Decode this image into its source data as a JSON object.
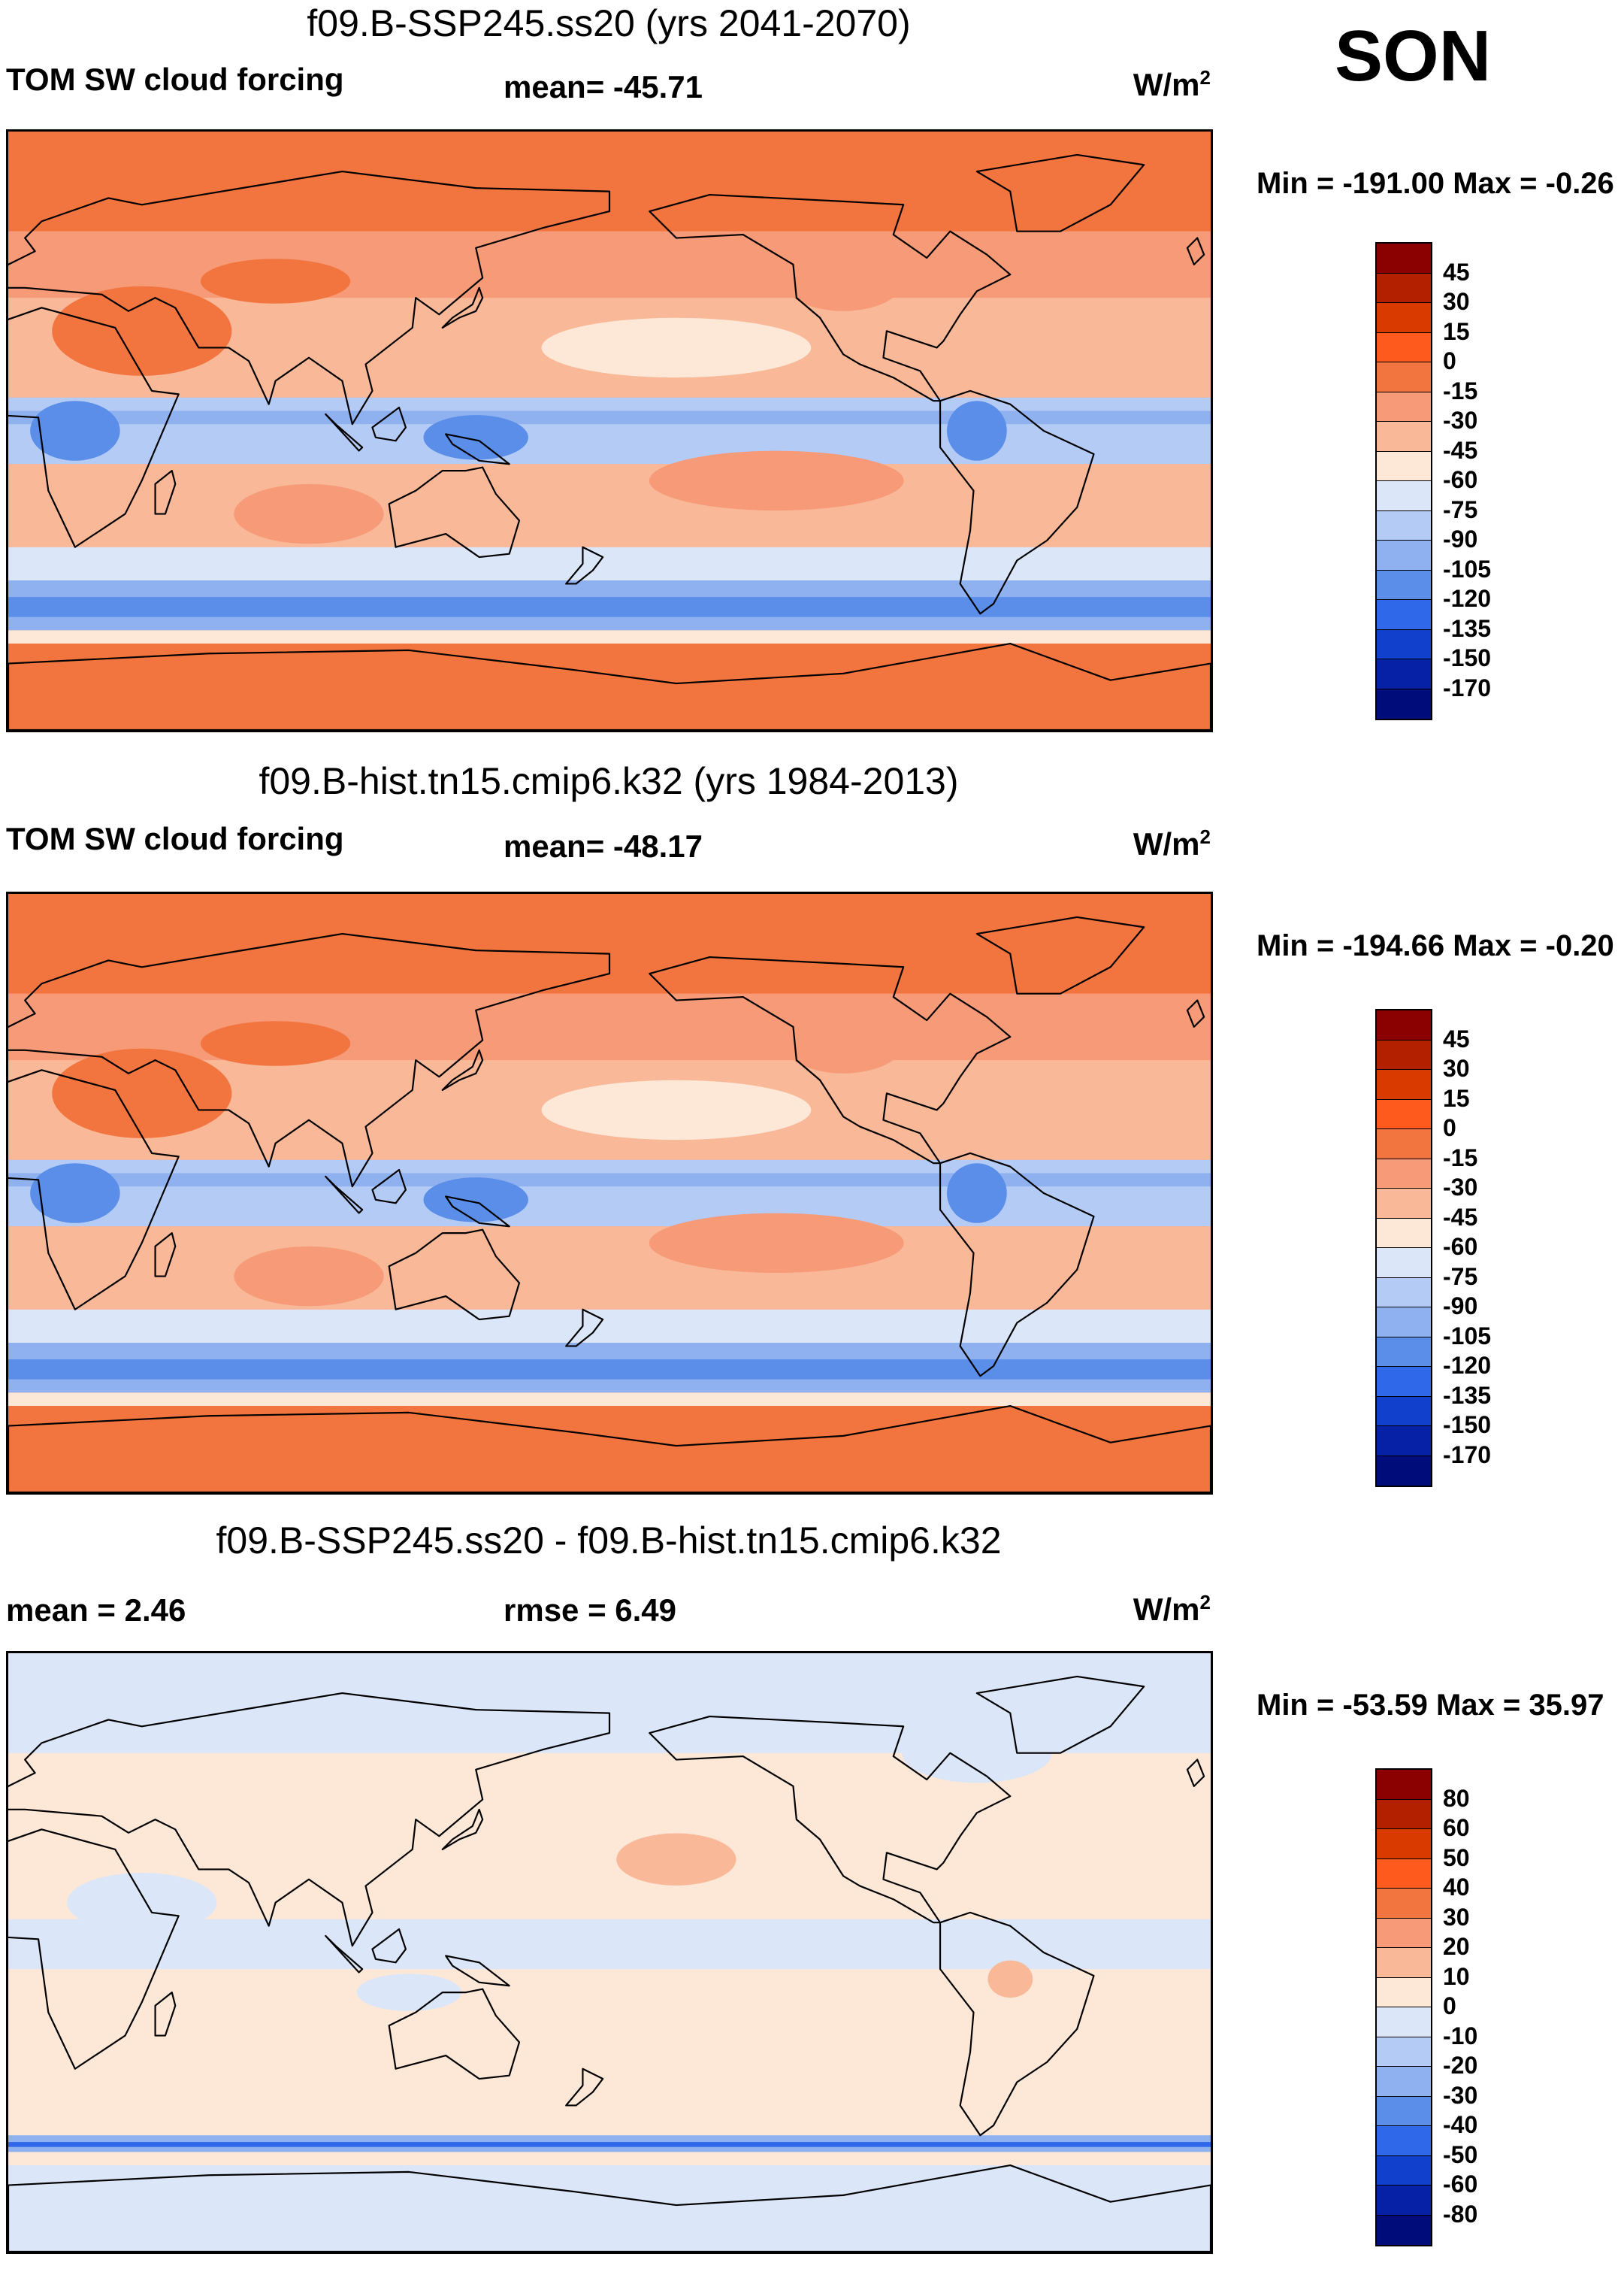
{
  "season": "SON",
  "panels": [
    {
      "title": "f09.B-SSP245.ss20 (yrs 2041-2070)",
      "left_label": "TOM SW cloud forcing",
      "mid_label": "mean= -45.71",
      "unit": "W/m",
      "unit_sup": "2",
      "minmax": "Min = -191.00 Max =  -0.26",
      "colorbar": {
        "labels": [
          "45",
          "30",
          "15",
          "0",
          "-15",
          "-30",
          "-45",
          "-60",
          "-75",
          "-90",
          "-105",
          "-120",
          "-135",
          "-150",
          "-170"
        ],
        "colors": [
          "#8b0000",
          "#b22000",
          "#d83a00",
          "#ff5a1e",
          "#f2743f",
          "#f69a78",
          "#f9b898",
          "#fde8d8",
          "#dbe6f8",
          "#b4cbf5",
          "#8fb1f0",
          "#5a8ee8",
          "#2f68e8",
          "#1140cc",
          "#0620a6",
          "#000c7a"
        ]
      },
      "field_type": "absolute"
    },
    {
      "title": "f09.B-hist.tn15.cmip6.k32 (yrs 1984-2013)",
      "left_label": "TOM SW cloud forcing",
      "mid_label": "mean= -48.17",
      "unit": "W/m",
      "unit_sup": "2",
      "minmax": "Min = -194.66 Max =  -0.20",
      "colorbar": {
        "labels": [
          "45",
          "30",
          "15",
          "0",
          "-15",
          "-30",
          "-45",
          "-60",
          "-75",
          "-90",
          "-105",
          "-120",
          "-135",
          "-150",
          "-170"
        ],
        "colors": [
          "#8b0000",
          "#b22000",
          "#d83a00",
          "#ff5a1e",
          "#f2743f",
          "#f69a78",
          "#f9b898",
          "#fde8d8",
          "#dbe6f8",
          "#b4cbf5",
          "#8fb1f0",
          "#5a8ee8",
          "#2f68e8",
          "#1140cc",
          "#0620a6",
          "#000c7a"
        ]
      },
      "field_type": "absolute"
    },
    {
      "title": "f09.B-SSP245.ss20 - f09.B-hist.tn15.cmip6.k32",
      "left_label": "mean =   2.46",
      "mid_label": "rmse =   6.49",
      "unit": "W/m",
      "unit_sup": "2",
      "minmax": "Min = -53.59 Max =  35.97",
      "colorbar": {
        "labels": [
          "80",
          "60",
          "50",
          "40",
          "30",
          "20",
          "10",
          "0",
          "-10",
          "-20",
          "-30",
          "-40",
          "-50",
          "-60",
          "-80"
        ],
        "colors": [
          "#8b0000",
          "#b22000",
          "#d83a00",
          "#ff5a1e",
          "#f2743f",
          "#f69a78",
          "#f9b898",
          "#fde8d8",
          "#dbe6f8",
          "#b4cbf5",
          "#8fb1f0",
          "#5a8ee8",
          "#2f68e8",
          "#1140cc",
          "#0620a6",
          "#000c7a"
        ]
      },
      "field_type": "difference"
    }
  ]
}
